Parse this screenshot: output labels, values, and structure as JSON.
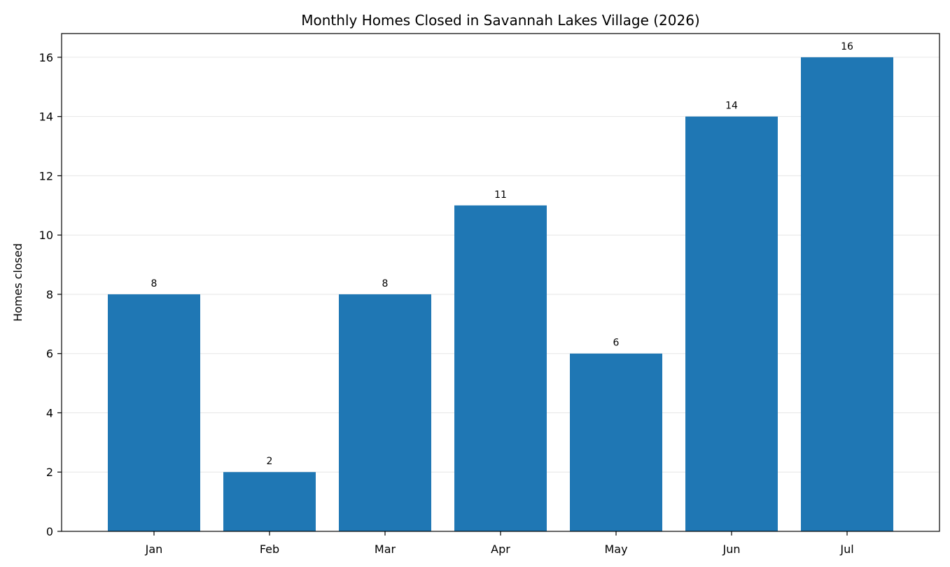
{
  "chart_data": {
    "type": "bar",
    "title": "Monthly Homes Closed in Savannah Lakes Village (2026)",
    "xlabel": "",
    "ylabel": "Homes closed",
    "categories": [
      "Jan",
      "Feb",
      "Mar",
      "Apr",
      "May",
      "Jun",
      "Jul"
    ],
    "values": [
      8,
      2,
      8,
      11,
      6,
      14,
      16
    ],
    "data_labels": [
      "8",
      "2",
      "8",
      "11",
      "6",
      "14",
      "16"
    ],
    "ylim": [
      0,
      16.8
    ],
    "yticks": [
      0,
      2,
      4,
      6,
      8,
      10,
      12,
      14,
      16
    ],
    "ytick_labels": [
      "0",
      "2",
      "4",
      "6",
      "8",
      "10",
      "12",
      "14",
      "16"
    ],
    "grid": "y-major",
    "legend": "none",
    "colors": {
      "bar": "#1f77b4",
      "grid": "#e6e6e6",
      "axis": "#000000"
    }
  }
}
